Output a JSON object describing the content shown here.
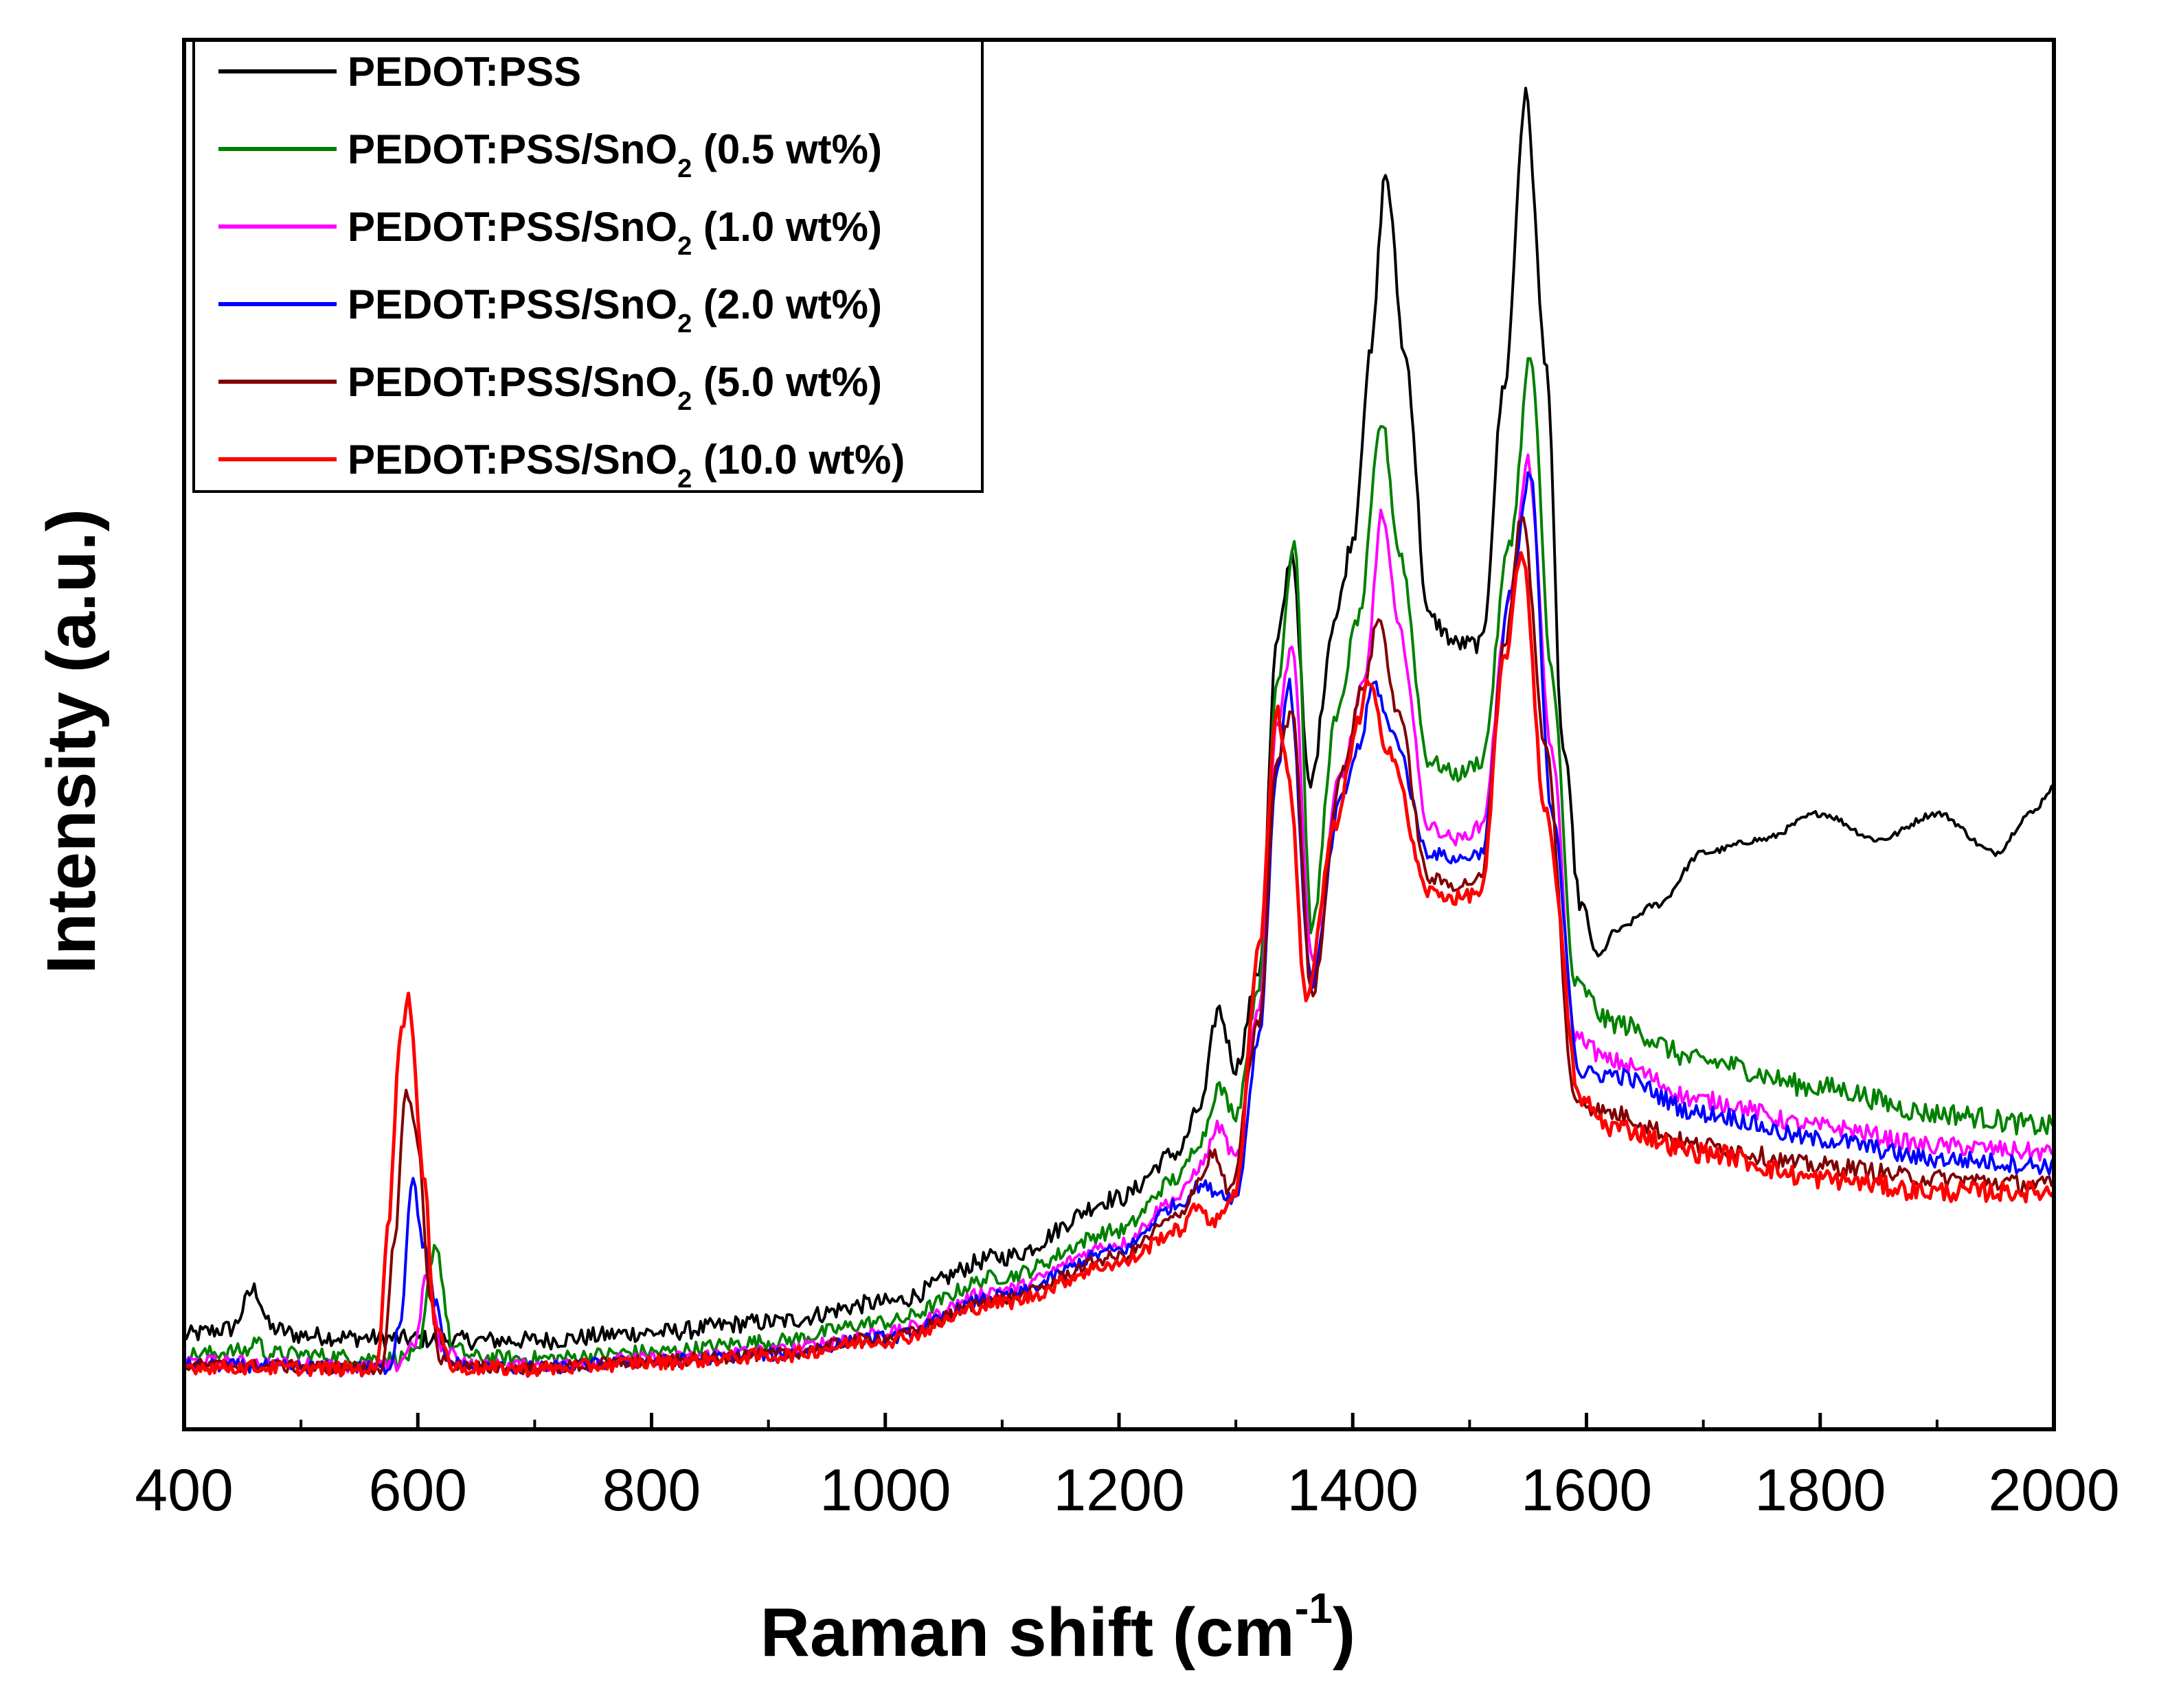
{
  "chart_data": {
    "type": "line",
    "xlabel": "Raman shift (cm",
    "xlabel_sup": "-1",
    "xlabel_close": ")",
    "ylabel": "Intensity (a.u.)",
    "xlim": [
      400,
      2000
    ],
    "ylim": [
      0,
      100
    ],
    "x_ticks": [
      "400",
      "600",
      "800",
      "1000",
      "1200",
      "1400",
      "1600",
      "1800",
      "2000"
    ],
    "legend_position": "top-left",
    "series": [
      {
        "name": "PEDOT:PSS",
        "legend": {
          "main": "PEDOT:PSS",
          "sub": "",
          "tail": ""
        },
        "color": "#000000",
        "baseline": 5,
        "noise": 0.7,
        "points": [
          [
            400,
            5
          ],
          [
            440,
            5.5
          ],
          [
            460,
            8.5
          ],
          [
            475,
            5.5
          ],
          [
            500,
            5
          ],
          [
            550,
            4.8
          ],
          [
            600,
            4.7
          ],
          [
            650,
            4.6
          ],
          [
            700,
            4.6
          ],
          [
            800,
            5.2
          ],
          [
            900,
            6
          ],
          [
            1000,
            7.5
          ],
          [
            1100,
            11
          ],
          [
            1200,
            15.5
          ],
          [
            1250,
            19
          ],
          [
            1270,
            22.5
          ],
          [
            1285,
            30
          ],
          [
            1300,
            25.5
          ],
          [
            1320,
            33
          ],
          [
            1335,
            58
          ],
          [
            1348,
            65
          ],
          [
            1363,
            47
          ],
          [
            1385,
            60
          ],
          [
            1400,
            66
          ],
          [
            1415,
            80
          ],
          [
            1428,
            94
          ],
          [
            1445,
            80
          ],
          [
            1465,
            60
          ],
          [
            1490,
            58
          ],
          [
            1510,
            58
          ],
          [
            1530,
            78
          ],
          [
            1548,
            100
          ],
          [
            1565,
            80
          ],
          [
            1580,
            50
          ],
          [
            1595,
            38
          ],
          [
            1610,
            34
          ],
          [
            1625,
            36
          ],
          [
            1660,
            38
          ],
          [
            1700,
            42
          ],
          [
            1750,
            43
          ],
          [
            1800,
            45
          ],
          [
            1850,
            43
          ],
          [
            1900,
            45
          ],
          [
            1950,
            42
          ],
          [
            1980,
            45
          ],
          [
            2000,
            47
          ]
        ]
      },
      {
        "name": "PEDOT:PSS/SnO2 (0.5 wt%)",
        "legend": {
          "main": "PEDOT:PSS/SnO",
          "sub": "2",
          "tail": " (0.5 wt%)"
        },
        "color": "#008000",
        "baseline": 3.5,
        "noise": 0.6,
        "points": [
          [
            400,
            3.5
          ],
          [
            455,
            3.8
          ],
          [
            462,
            4.8
          ],
          [
            470,
            3.6
          ],
          [
            580,
            3.2
          ],
          [
            600,
            3.5
          ],
          [
            615,
            12
          ],
          [
            630,
            4
          ],
          [
            650,
            3.3
          ],
          [
            700,
            3.2
          ],
          [
            800,
            3.7
          ],
          [
            900,
            4.5
          ],
          [
            1000,
            6
          ],
          [
            1100,
            9.5
          ],
          [
            1200,
            13
          ],
          [
            1250,
            17
          ],
          [
            1270,
            20
          ],
          [
            1285,
            24
          ],
          [
            1300,
            22
          ],
          [
            1320,
            32
          ],
          [
            1335,
            55
          ],
          [
            1350,
            66
          ],
          [
            1365,
            36
          ],
          [
            1385,
            52
          ],
          [
            1405,
            60
          ],
          [
            1425,
            75
          ],
          [
            1440,
            65
          ],
          [
            1465,
            49
          ],
          [
            1490,
            48
          ],
          [
            1510,
            49
          ],
          [
            1535,
            66
          ],
          [
            1552,
            80
          ],
          [
            1570,
            56
          ],
          [
            1590,
            32
          ],
          [
            1620,
            29
          ],
          [
            1700,
            26
          ],
          [
            1800,
            24
          ],
          [
            1900,
            22
          ],
          [
            2000,
            21
          ]
        ]
      },
      {
        "name": "PEDOT:PSS/SnO2 (1.0 wt%)",
        "legend": {
          "main": "PEDOT:PSS/SnO",
          "sub": "2",
          "tail": " (1.0 wt%)"
        },
        "color": "#ff00ff",
        "baseline": 2.8,
        "noise": 0.5,
        "points": [
          [
            400,
            3
          ],
          [
            580,
            2.6
          ],
          [
            598,
            4.5
          ],
          [
            608,
            10
          ],
          [
            620,
            4
          ],
          [
            650,
            2.7
          ],
          [
            700,
            2.7
          ],
          [
            800,
            3.2
          ],
          [
            900,
            3.8
          ],
          [
            1000,
            5.2
          ],
          [
            1100,
            8.5
          ],
          [
            1200,
            12
          ],
          [
            1250,
            15.5
          ],
          [
            1270,
            18
          ],
          [
            1285,
            21
          ],
          [
            1300,
            18.5
          ],
          [
            1320,
            30
          ],
          [
            1335,
            52
          ],
          [
            1348,
            58
          ],
          [
            1365,
            34
          ],
          [
            1390,
            48
          ],
          [
            1410,
            55
          ],
          [
            1425,
            68
          ],
          [
            1440,
            59
          ],
          [
            1465,
            44
          ],
          [
            1490,
            43
          ],
          [
            1510,
            44
          ],
          [
            1535,
            62
          ],
          [
            1550,
            72
          ],
          [
            1570,
            50
          ],
          [
            1590,
            28
          ],
          [
            1620,
            26
          ],
          [
            1700,
            23
          ],
          [
            1800,
            21
          ],
          [
            1900,
            19.5
          ],
          [
            2000,
            19
          ]
        ]
      },
      {
        "name": "PEDOT:PSS/SnO2 (2.0 wt%)",
        "legend": {
          "main": "PEDOT:PSS/SnO",
          "sub": "2",
          "tail": " (2.0 wt%)"
        },
        "color": "#0000ff",
        "baseline": 2.5,
        "noise": 0.5,
        "points": [
          [
            400,
            2.7
          ],
          [
            575,
            2.5
          ],
          [
            585,
            6
          ],
          [
            595,
            17
          ],
          [
            605,
            12
          ],
          [
            615,
            7.5
          ],
          [
            625,
            3
          ],
          [
            650,
            2.5
          ],
          [
            700,
            2.5
          ],
          [
            800,
            3
          ],
          [
            900,
            3.5
          ],
          [
            1000,
            4.8
          ],
          [
            1100,
            8
          ],
          [
            1200,
            11.5
          ],
          [
            1250,
            15
          ],
          [
            1270,
            16.5
          ],
          [
            1285,
            16
          ],
          [
            1300,
            15.5
          ],
          [
            1320,
            28
          ],
          [
            1335,
            48
          ],
          [
            1345,
            55
          ],
          [
            1365,
            32
          ],
          [
            1390,
            46
          ],
          [
            1405,
            50
          ],
          [
            1418,
            55
          ],
          [
            1435,
            51
          ],
          [
            1465,
            42
          ],
          [
            1490,
            41.5
          ],
          [
            1510,
            42
          ],
          [
            1535,
            62
          ],
          [
            1552,
            71
          ],
          [
            1570,
            45
          ],
          [
            1595,
            25
          ],
          [
            1620,
            25
          ],
          [
            1700,
            22
          ],
          [
            1800,
            20
          ],
          [
            1900,
            18.5
          ],
          [
            2000,
            18
          ]
        ]
      },
      {
        "name": "PEDOT:PSS/SnO2 (5.0 wt%)",
        "legend": {
          "main": "PEDOT:PSS/SnO",
          "sub": "2",
          "tail": " (5.0 wt%)"
        },
        "color": "#800000",
        "baseline": 2.5,
        "noise": 0.5,
        "points": [
          [
            400,
            2.7
          ],
          [
            570,
            2.5
          ],
          [
            580,
            12
          ],
          [
            590,
            24
          ],
          [
            600,
            20
          ],
          [
            610,
            8
          ],
          [
            620,
            3
          ],
          [
            650,
            2.5
          ],
          [
            700,
            2.5
          ],
          [
            800,
            3
          ],
          [
            900,
            3.5
          ],
          [
            1000,
            4.8
          ],
          [
            1100,
            7.8
          ],
          [
            1200,
            11
          ],
          [
            1250,
            14
          ],
          [
            1270,
            17
          ],
          [
            1280,
            19
          ],
          [
            1295,
            16
          ],
          [
            1320,
            29
          ],
          [
            1335,
            49
          ],
          [
            1348,
            53
          ],
          [
            1365,
            31
          ],
          [
            1390,
            48
          ],
          [
            1410,
            55
          ],
          [
            1422,
            60
          ],
          [
            1438,
            53
          ],
          [
            1465,
            40
          ],
          [
            1490,
            39.5
          ],
          [
            1510,
            40
          ],
          [
            1530,
            58
          ],
          [
            1545,
            68
          ],
          [
            1565,
            50
          ],
          [
            1590,
            23
          ],
          [
            1620,
            22
          ],
          [
            1700,
            19.5
          ],
          [
            1800,
            18
          ],
          [
            1900,
            17
          ],
          [
            2000,
            16.5
          ]
        ]
      },
      {
        "name": "PEDOT:PSS/SnO2 (10.0 wt%)",
        "legend": {
          "main": "PEDOT:PSS/SnO",
          "sub": "2",
          "tail": " (10.0 wt%)"
        },
        "color": "#ff0000",
        "baseline": 2.5,
        "noise": 0.55,
        "points": [
          [
            400,
            2.6
          ],
          [
            565,
            2.4
          ],
          [
            575,
            14
          ],
          [
            585,
            28
          ],
          [
            592,
            31
          ],
          [
            605,
            17
          ],
          [
            615,
            6
          ],
          [
            630,
            2.5
          ],
          [
            700,
            2.4
          ],
          [
            800,
            2.9
          ],
          [
            900,
            3.4
          ],
          [
            1000,
            4.6
          ],
          [
            1100,
            7.5
          ],
          [
            1200,
            10.5
          ],
          [
            1250,
            13
          ],
          [
            1270,
            15
          ],
          [
            1280,
            13.5
          ],
          [
            1300,
            16
          ],
          [
            1320,
            35
          ],
          [
            1335,
            53
          ],
          [
            1345,
            48
          ],
          [
            1360,
            31
          ],
          [
            1385,
            44
          ],
          [
            1405,
            52
          ],
          [
            1413,
            55
          ],
          [
            1430,
            50
          ],
          [
            1465,
            39
          ],
          [
            1490,
            38.5
          ],
          [
            1510,
            39
          ],
          [
            1530,
            57
          ],
          [
            1545,
            65
          ],
          [
            1565,
            45
          ],
          [
            1595,
            23
          ],
          [
            1620,
            21
          ],
          [
            1700,
            19
          ],
          [
            1800,
            17
          ],
          [
            1900,
            16
          ],
          [
            2000,
            16
          ]
        ]
      }
    ]
  }
}
